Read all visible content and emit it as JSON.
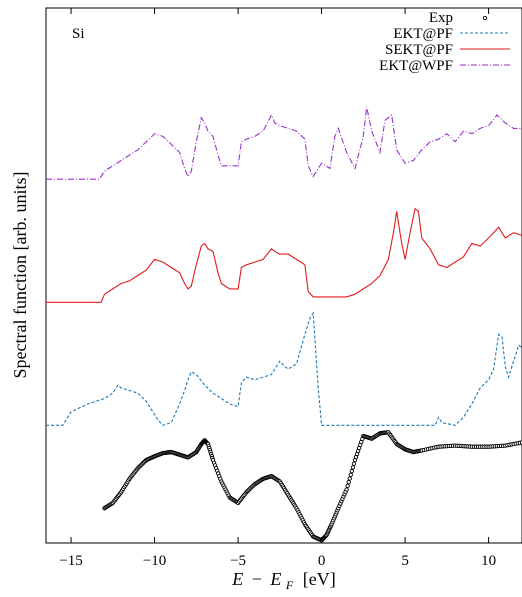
{
  "chart_data": {
    "type": "line",
    "panel_label": "Si",
    "xlabel": "E − E_F [eV]",
    "xlabel_parts": {
      "e": "E",
      "minus": "−",
      "ef": "E",
      "sub": "F",
      "unit": "[eV]"
    },
    "ylabel": "Spectral function [arb. units]",
    "xlim": [
      -16.5,
      12
    ],
    "ylim": [
      0,
      10
    ],
    "xticks": [
      -15,
      -10,
      -5,
      0,
      5,
      10
    ],
    "xtick_labels": [
      "−15",
      "−10",
      "−5",
      "0",
      "5",
      "10"
    ],
    "legend_position": "top-right",
    "grid": false,
    "series": [
      {
        "name": "Exp",
        "style": "points",
        "color": "#000000",
        "x": [
          -13,
          -12.5,
          -12,
          -11.5,
          -11,
          -10.5,
          -10,
          -9.5,
          -9,
          -8.5,
          -8,
          -7.5,
          -7.2,
          -7,
          -6.8,
          -6.5,
          -6,
          -5.5,
          -5,
          -4.5,
          -4,
          -3.5,
          -3,
          -2.5,
          -2,
          -1.5,
          -1,
          -0.5,
          0,
          0.3,
          0.6,
          1,
          1.5,
          2,
          2.5,
          3,
          3.5,
          4,
          4.5,
          5,
          5.5,
          6,
          7,
          8,
          9,
          10,
          11,
          12
        ],
        "y": [
          0.65,
          0.75,
          0.95,
          1.2,
          1.4,
          1.55,
          1.62,
          1.68,
          1.7,
          1.65,
          1.6,
          1.7,
          1.85,
          1.92,
          1.85,
          1.55,
          1.15,
          0.85,
          0.75,
          0.95,
          1.1,
          1.2,
          1.25,
          1.15,
          0.9,
          0.65,
          0.35,
          0.12,
          0.05,
          0.15,
          0.35,
          0.65,
          1.0,
          1.55,
          2.0,
          1.95,
          2.05,
          2.07,
          1.85,
          1.75,
          1.7,
          1.73,
          1.8,
          1.82,
          1.8,
          1.8,
          1.82,
          1.88
        ]
      },
      {
        "name": "EKT@PF",
        "style": "dashed",
        "color": "#1f78b4",
        "x": [
          -16.5,
          -15.5,
          -15,
          -14,
          -13,
          -12.5,
          -12.2,
          -12,
          -11.5,
          -11,
          -10.5,
          -10,
          -9.8,
          -9.5,
          -9,
          -8.5,
          -8.2,
          -8,
          -7.8,
          -7.5,
          -7,
          -6.5,
          -6,
          -5.5,
          -5,
          -4.8,
          -4.5,
          -4,
          -3.5,
          -3,
          -2.5,
          -2.2,
          -2,
          -1.5,
          -1,
          -0.7,
          -0.5,
          -0.2,
          0,
          1,
          2,
          3,
          4,
          5,
          6,
          6.8,
          7,
          7.2,
          8,
          8.5,
          9,
          9.5,
          10,
          10.3,
          10.6,
          10.8,
          11,
          11.2,
          11.5,
          11.8,
          12
        ],
        "y": [
          2.2,
          2.2,
          2.45,
          2.6,
          2.7,
          2.8,
          2.95,
          2.9,
          2.85,
          2.8,
          2.65,
          2.4,
          2.3,
          2.2,
          2.25,
          2.6,
          2.85,
          3.05,
          3.2,
          3.15,
          2.95,
          2.8,
          2.7,
          2.6,
          2.55,
          3.0,
          3.1,
          3.05,
          3.1,
          3.15,
          3.4,
          3.3,
          3.25,
          3.35,
          3.9,
          4.2,
          4.3,
          2.9,
          2.2,
          2.2,
          2.2,
          2.2,
          2.2,
          2.2,
          2.2,
          2.2,
          2.35,
          2.25,
          2.2,
          2.35,
          2.6,
          2.9,
          3.05,
          3.25,
          3.9,
          3.85,
          3.3,
          3.1,
          3.4,
          3.7,
          3.65
        ]
      },
      {
        "name": "SEKT@PF",
        "style": "solid",
        "color": "#e31a1c",
        "x": [
          -16.5,
          -13.2,
          -13,
          -12.5,
          -12,
          -11.5,
          -11,
          -10.5,
          -10,
          -9.5,
          -9,
          -8.5,
          -8.2,
          -8,
          -7.8,
          -7.5,
          -7.2,
          -7,
          -6.8,
          -6.5,
          -6.2,
          -6,
          -5.5,
          -5,
          -4.8,
          -4.5,
          -4,
          -3.5,
          -3,
          -2.8,
          -2.5,
          -2,
          -1.5,
          -1,
          -0.8,
          -0.5,
          0,
          1,
          1.5,
          2,
          2.5,
          3,
          3.5,
          4,
          4.3,
          4.5,
          4.8,
          5,
          5.3,
          5.6,
          5.8,
          6,
          6.5,
          7,
          7.5,
          8,
          8.5,
          9,
          9.5,
          10,
          10.3,
          10.6,
          11,
          11.5,
          12
        ],
        "y": [
          4.5,
          4.5,
          4.65,
          4.75,
          4.85,
          4.9,
          5.0,
          5.1,
          5.3,
          5.25,
          5.15,
          5.05,
          4.85,
          4.75,
          4.8,
          5.2,
          5.55,
          5.6,
          5.5,
          5.45,
          5.05,
          4.85,
          4.75,
          4.75,
          5.15,
          5.2,
          5.25,
          5.3,
          5.5,
          5.45,
          5.4,
          5.4,
          5.3,
          5.2,
          4.7,
          4.6,
          4.6,
          4.6,
          4.6,
          4.65,
          4.75,
          4.85,
          5.0,
          5.3,
          5.8,
          6.2,
          5.6,
          5.3,
          5.8,
          6.25,
          6.2,
          5.7,
          5.5,
          5.2,
          5.15,
          5.25,
          5.35,
          5.6,
          5.55,
          5.7,
          5.8,
          5.9,
          5.7,
          5.8,
          5.75
        ]
      },
      {
        "name": "EKT@WPF",
        "style": "dash-dot",
        "color": "#9a32cd",
        "x": [
          -16.5,
          -13.3,
          -13,
          -12.5,
          -12,
          -11.5,
          -11,
          -10.5,
          -10,
          -9.5,
          -9,
          -8.5,
          -8.2,
          -8,
          -7.8,
          -7.5,
          -7.2,
          -7,
          -6.8,
          -6.5,
          -6.2,
          -6,
          -5.5,
          -5,
          -4.8,
          -4.5,
          -4,
          -3.5,
          -3,
          -2.8,
          -2.5,
          -2,
          -1.5,
          -1,
          -0.8,
          -0.5,
          0,
          0.5,
          0.8,
          1,
          1.5,
          2,
          2.5,
          2.7,
          3,
          3.5,
          3.8,
          4.2,
          4.5,
          5,
          5.5,
          6,
          6.5,
          7,
          7.5,
          8,
          8.5,
          9,
          9.5,
          10,
          10.5,
          11,
          11.5,
          12
        ],
        "y": [
          6.8,
          6.8,
          6.95,
          7.05,
          7.15,
          7.25,
          7.35,
          7.5,
          7.65,
          7.6,
          7.45,
          7.3,
          7.0,
          6.85,
          6.95,
          7.5,
          7.95,
          7.85,
          7.7,
          7.6,
          7.25,
          7.05,
          7.05,
          7.05,
          7.5,
          7.55,
          7.6,
          7.7,
          8.0,
          7.85,
          7.8,
          7.75,
          7.7,
          7.55,
          7.05,
          6.85,
          7.1,
          7.0,
          7.6,
          7.75,
          7.3,
          7.0,
          7.6,
          8.15,
          7.7,
          7.3,
          7.9,
          8.0,
          7.35,
          7.1,
          7.15,
          7.35,
          7.5,
          7.55,
          7.65,
          7.5,
          7.7,
          7.65,
          7.75,
          7.8,
          8.0,
          7.85,
          7.75,
          7.75
        ]
      }
    ]
  }
}
